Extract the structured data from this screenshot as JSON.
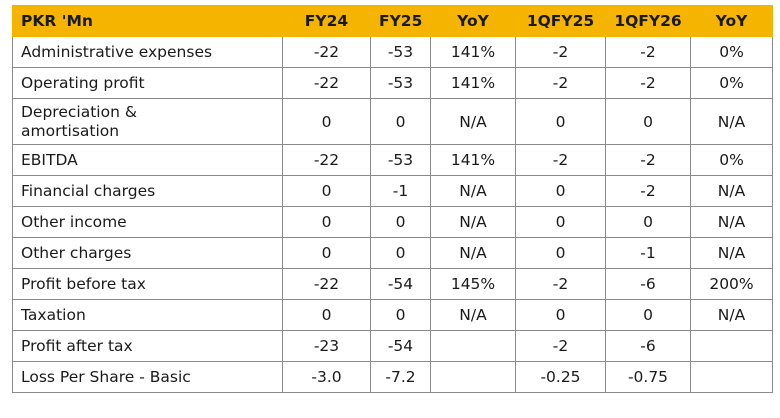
{
  "table": {
    "header": [
      "PKR 'Mn",
      "FY24",
      "FY25",
      "YoY",
      "1QFY25",
      "1QFY26",
      "YoY"
    ],
    "rows": [
      [
        "Administrative expenses",
        "-22",
        "-53",
        "141%",
        "-2",
        "-2",
        "0%"
      ],
      [
        "Operating profit",
        "-22",
        "-53",
        "141%",
        "-2",
        "-2",
        "0%"
      ],
      [
        "Depreciation & amortisation",
        "0",
        "0",
        "N/A",
        "0",
        "0",
        "N/A"
      ],
      [
        "EBITDA",
        "-22",
        "-53",
        "141%",
        "-2",
        "-2",
        "0%"
      ],
      [
        "Financial charges",
        "0",
        "-1",
        "N/A",
        "0",
        "-2",
        "N/A"
      ],
      [
        "Other income",
        "0",
        "0",
        "N/A",
        "0",
        "0",
        "N/A"
      ],
      [
        "Other charges",
        "0",
        "0",
        "N/A",
        "0",
        "-1",
        "N/A"
      ],
      [
        "Profit before tax",
        "-22",
        "-54",
        "145%",
        "-2",
        "-6",
        "200%"
      ],
      [
        "Taxation",
        "0",
        "0",
        "N/A",
        "0",
        "0",
        "N/A"
      ],
      [
        "Profit after tax",
        "-23",
        "-54",
        null,
        "-2",
        "-6",
        null
      ],
      [
        "Loss Per Share - Basic",
        "-3.0",
        "-7.2",
        null,
        "-0.25",
        "-0.75",
        null
      ]
    ]
  }
}
